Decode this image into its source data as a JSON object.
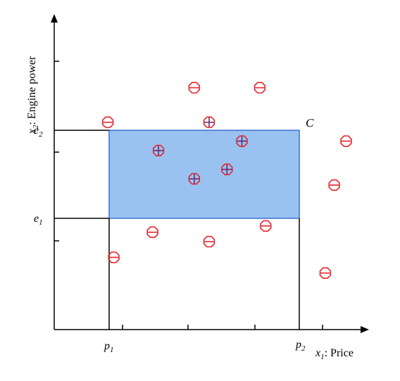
{
  "labels": {
    "y_axis_var": "x",
    "y_axis_sub": "2",
    "y_axis_text": ": Engine power",
    "x_axis_var": "x",
    "x_axis_sub": "1",
    "x_axis_text": ": Price",
    "e1": "e",
    "e1_sub": "1",
    "e2": "e",
    "e2_sub": "2",
    "p1": "p",
    "p1_sub": "1",
    "p2": "p",
    "p2_sub": "2",
    "concept": "C"
  },
  "colors": {
    "rectangle_fill": "#99c2f0",
    "rectangle_stroke": "#3a6fd8",
    "negative": "#e8242c",
    "positive_stroke": "#e8242c",
    "positive_mark": "#6b2a6b",
    "axis": "#000000"
  },
  "examples": {
    "positive": [
      {
        "price": 0.35,
        "power": 0.57
      },
      {
        "price": 0.52,
        "power": 0.66
      },
      {
        "price": 0.63,
        "power": 0.6
      },
      {
        "price": 0.47,
        "power": 0.48
      },
      {
        "price": 0.58,
        "power": 0.51
      }
    ],
    "negative": [
      {
        "price": 0.47,
        "power": 0.77
      },
      {
        "price": 0.69,
        "power": 0.77
      },
      {
        "price": 0.18,
        "power": 0.66
      },
      {
        "price": 0.98,
        "power": 0.6
      },
      {
        "price": 0.94,
        "power": 0.46
      },
      {
        "price": 0.71,
        "power": 0.33
      },
      {
        "price": 0.33,
        "power": 0.31
      },
      {
        "price": 0.52,
        "power": 0.28
      },
      {
        "price": 0.2,
        "power": 0.23
      },
      {
        "price": 0.91,
        "power": 0.18
      }
    ]
  }
}
